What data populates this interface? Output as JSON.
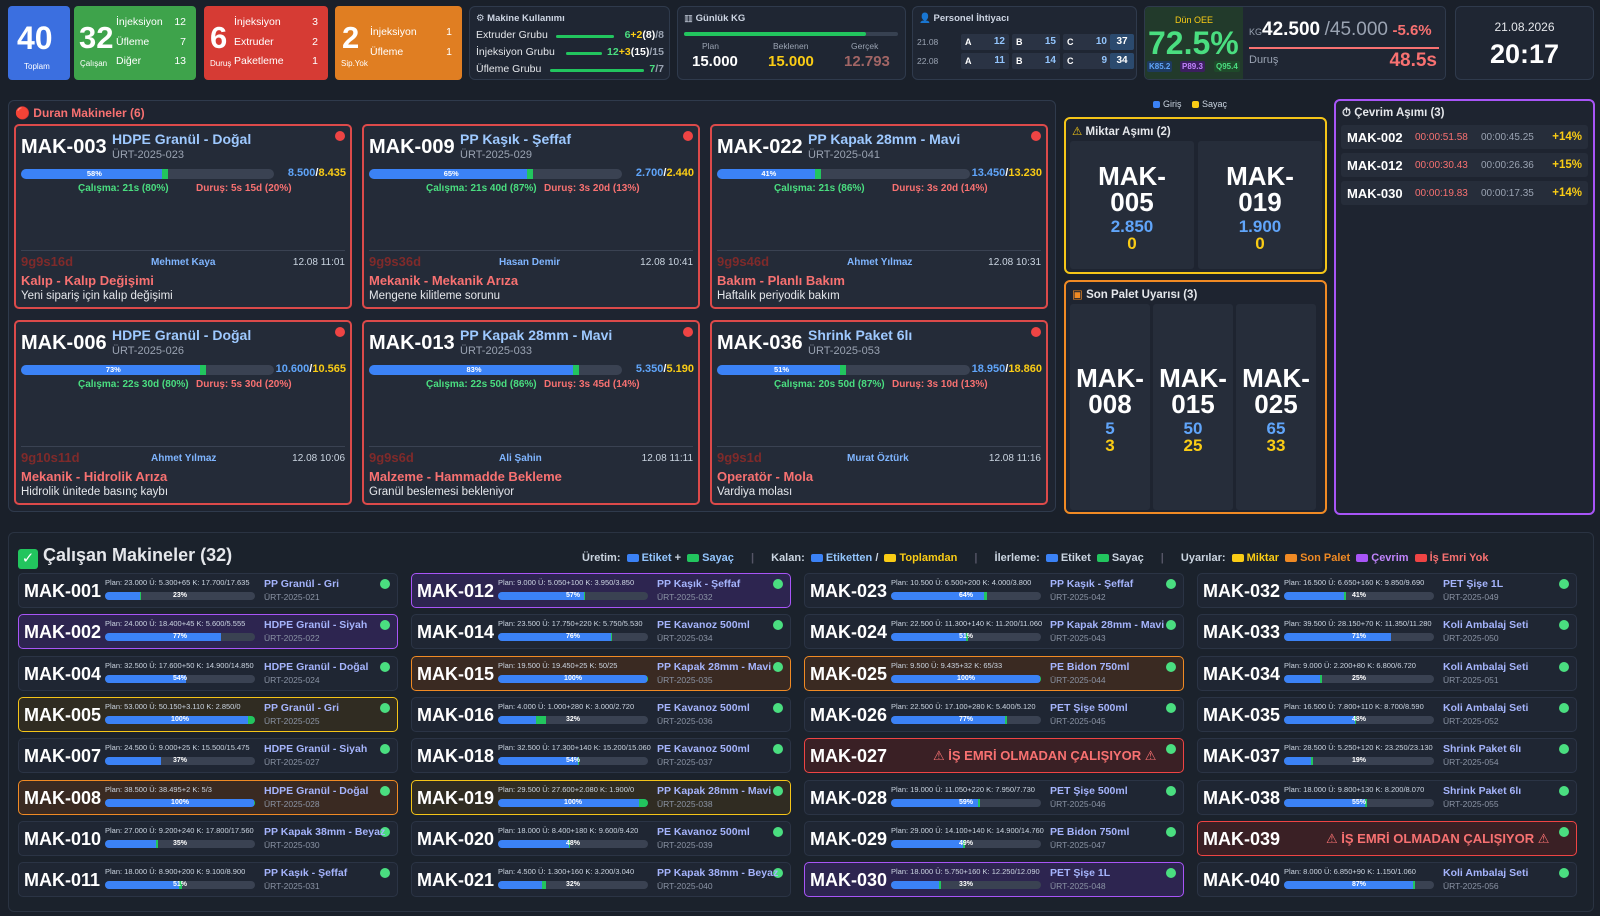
{
  "summary": {
    "total": {
      "value": "40",
      "label": "Toplam"
    },
    "running": {
      "value": "32",
      "label": "Çalışan",
      "rows": [
        {
          "k": "İnjeksiyon",
          "v": "12"
        },
        {
          "k": "Üfleme",
          "v": "7"
        },
        {
          "k": "Diğer",
          "v": "13"
        }
      ]
    },
    "stopped": {
      "value": "6",
      "label": "Duruş",
      "rows": [
        {
          "k": "İnjeksiyon",
          "v": "3"
        },
        {
          "k": "Extruder",
          "v": "2"
        },
        {
          "k": "Paketleme",
          "v": "1"
        }
      ]
    },
    "noorder": {
      "value": "2",
      "label": "Sip.Yok",
      "rows": [
        {
          "k": "İnjeksiyon",
          "v": "1"
        },
        {
          "k": "Üfleme",
          "v": "1"
        }
      ]
    }
  },
  "machine_usage": {
    "title": "Makine Kullanımı",
    "rows": [
      {
        "name": "Extruder Grubu",
        "a": "6",
        "b": "+2",
        "c": "(8)",
        "d": "/8",
        "fill": 1.0
      },
      {
        "name": "İnjeksiyon Grubu",
        "a": "12",
        "b": "+3",
        "c": "(15)",
        "d": "/15",
        "fill": 1.0
      },
      {
        "name": "Üfleme Grubu",
        "a": "7",
        "b": "",
        "c": "",
        "d": "/7",
        "fill": 1.0
      }
    ]
  },
  "daily": {
    "title": "Günlük KG",
    "plan_l": "Plan",
    "plan": "15.000",
    "exp_l": "Beklenen",
    "exp": "15.000",
    "act_l": "Gerçek",
    "act": "12.793",
    "fill": 0.85
  },
  "staff": {
    "title": "Personel İhtiyacı",
    "rows": [
      {
        "d": "21.08",
        "A": "12",
        "B": "15",
        "C": "10",
        "T": "37"
      },
      {
        "d": "22.08",
        "A": "11",
        "B": "14",
        "C": "9",
        "T": "34"
      }
    ]
  },
  "oee": {
    "label": "Dün OEE",
    "value": "72.5%",
    "k": "K85.2",
    "p": "P89.3",
    "q": "Q95.4",
    "kg_unit": "KG",
    "kg": "42.500",
    "kg_target": "/45.000",
    "kg_delta": "-5.6%",
    "dur_l": "Duruş",
    "dur": "48.5s"
  },
  "clock": {
    "date": "21.08.2026",
    "time": "20:17"
  },
  "stopped_panel": {
    "title": "Duran Makineler (6)",
    "machines": [
      {
        "id": "MAK-003",
        "name": "HDPE Granül - Doğal",
        "ur": "ÜRT-2025-023",
        "pct": "58%",
        "p": 0.58,
        "cnt_a": "8.500",
        "cnt_b": "8.435",
        "cal": "Çalışma: 21s (80%)",
        "dur": "Duruş: 5s 15d (20%)",
        "tm": "9g9s16d",
        "op": "Mehmet Kaya",
        "dt": "12.08 11:01",
        "reason": "Kalıp - Kalıp Değişimi",
        "desc": "Yeni sipariş için kalıp değişimi"
      },
      {
        "id": "MAK-009",
        "name": "PP Kaşık - Şeffaf",
        "ur": "ÜRT-2025-029",
        "pct": "65%",
        "p": 0.65,
        "cnt_a": "2.700",
        "cnt_b": "2.440",
        "cal": "Çalışma: 21s 40d (87%)",
        "dur": "Duruş: 3s 20d (13%)",
        "tm": "9g9s36d",
        "op": "Hasan Demir",
        "dt": "12.08 10:41",
        "reason": "Mekanik - Mekanik Arıza",
        "desc": "Mengene kilitleme sorunu"
      },
      {
        "id": "MAK-022",
        "name": "PP Kapak 28mm - Mavi",
        "ur": "ÜRT-2025-041",
        "pct": "41%",
        "p": 0.41,
        "cnt_a": "13.450",
        "cnt_b": "13.230",
        "cal": "Çalışma: 21s (86%)",
        "dur": "Duruş: 3s 20d (14%)",
        "tm": "9g9s46d",
        "op": "Ahmet Yılmaz",
        "dt": "12.08 10:31",
        "reason": "Bakım - Planlı Bakım",
        "desc": "Haftalık periyodik bakım"
      },
      {
        "id": "MAK-006",
        "name": "HDPE Granül - Doğal",
        "ur": "ÜRT-2025-026",
        "pct": "73%",
        "p": 0.73,
        "cnt_a": "10.600",
        "cnt_b": "10.565",
        "cal": "Çalışma: 22s 30d (80%)",
        "dur": "Duruş: 5s 30d (20%)",
        "tm": "9g10s11d",
        "op": "Ahmet Yılmaz",
        "dt": "12.08 10:06",
        "reason": "Mekanik - Hidrolik Arıza",
        "desc": "Hidrolik ünitede basınç kaybı"
      },
      {
        "id": "MAK-013",
        "name": "PP Kapak 28mm - Mavi",
        "ur": "ÜRT-2025-033",
        "pct": "83%",
        "p": 0.83,
        "cnt_a": "5.350",
        "cnt_b": "5.190",
        "cal": "Çalışma: 22s 50d (86%)",
        "dur": "Duruş: 3s 45d (14%)",
        "tm": "9g9s6d",
        "op": "Ali Şahin",
        "dt": "12.08 11:11",
        "reason": "Malzeme - Hammadde Bekleme",
        "desc": "Granül beslemesi bekleniyor"
      },
      {
        "id": "MAK-036",
        "name": "Shrink Paket 6lı",
        "ur": "ÜRT-2025-053",
        "pct": "51%",
        "p": 0.51,
        "cnt_a": "18.950",
        "cnt_b": "18.860",
        "cal": "Çalışma: 20s 50d (87%)",
        "dur": "Duruş: 3s 10d (13%)",
        "tm": "9g9s1d",
        "op": "Murat Öztürk",
        "dt": "12.08 11:16",
        "reason": "Operatör - Mola",
        "desc": "Vardiya molası"
      }
    ]
  },
  "legend_top": {
    "a": "Giriş",
    "b": "Sayaç"
  },
  "qty_over": {
    "title": "Miktar Aşımı (2)",
    "items": [
      {
        "id1": "MAK-",
        "id2": "005",
        "v1": "2.850",
        "v2": "0"
      },
      {
        "id1": "MAK-",
        "id2": "019",
        "v1": "1.900",
        "v2": "0"
      }
    ]
  },
  "last_pallet": {
    "title": "Son Palet Uyarısı (3)",
    "items": [
      {
        "id1": "MAK-",
        "id2": "008",
        "v1": "5",
        "v2": "3"
      },
      {
        "id1": "MAK-",
        "id2": "015",
        "v1": "50",
        "v2": "25"
      },
      {
        "id1": "MAK-",
        "id2": "025",
        "v1": "65",
        "v2": "33"
      }
    ]
  },
  "cycle_over": {
    "title": "Çevrim Aşımı (3)",
    "items": [
      {
        "id": "MAK-002",
        "a": "00:00:51.58",
        "b": "00:00:45.25",
        "c": "+14%"
      },
      {
        "id": "MAK-012",
        "a": "00:00:30.43",
        "b": "00:00:26.36",
        "c": "+15%"
      },
      {
        "id": "MAK-030",
        "a": "00:00:19.83",
        "b": "00:00:17.35",
        "c": "+14%"
      }
    ]
  },
  "running_panel": {
    "title": "Çalışan Makineler (32)",
    "legend": {
      "uretim": "Üretim:",
      "etiket": "Etiket",
      "plus": "+",
      "sayac": "Sayaç",
      "kalan": "Kalan:",
      "etiketten": "Etiketten",
      "slash": "/",
      "toplamdan": "Toplamdan",
      "ilerleme": "İlerleme:",
      "etiket2": "Etiket",
      "sayac2": "Sayaç",
      "uyarilar": "Uyarılar:",
      "miktar": "Miktar",
      "sonpalet": "Son Palet",
      "cevrim": "Çevrim",
      "isemri": "İş Emri Yok"
    },
    "warn_text": "⚠ İŞ EMRİ OLMADAN ÇALIŞIYOR ⚠",
    "machines": [
      {
        "id": "MAK-001",
        "st": "Plan: 23.000  Ü: 5.300+65  K: 17.700/17.635",
        "pct": "23%",
        "p": 0.23,
        "g": 0.01,
        "pr": "PP Granül - Gri",
        "ur": "ÜRT-2025-021",
        "s": ""
      },
      {
        "id": "MAK-012",
        "st": "Plan: 9.000  Ü: 5.050+100  K: 3.950/3.850",
        "pct": "57%",
        "p": 0.57,
        "g": 0.01,
        "pr": "PP Kaşık - Şeffaf",
        "ur": "ÜRT-2025-032",
        "s": "cycle"
      },
      {
        "id": "MAK-023",
        "st": "Plan: 10.500  Ü: 6.500+200  K: 4.000/3.800",
        "pct": "64%",
        "p": 0.62,
        "g": 0.02,
        "pr": "PP Kaşık - Şeffaf",
        "ur": "ÜRT-2025-042",
        "s": ""
      },
      {
        "id": "MAK-032",
        "st": "Plan: 16.500  Ü: 6.650+160  K: 9.850/9.690",
        "pct": "41%",
        "p": 0.4,
        "g": 0.01,
        "pr": "PET Şişe 1L",
        "ur": "ÜRT-2025-049",
        "s": ""
      },
      {
        "id": "MAK-002",
        "st": "Plan: 24.000  Ü: 18.400+45  K: 5.600/5.555",
        "pct": "77%",
        "p": 0.77,
        "g": 0.0,
        "pr": "HDPE Granül - Siyah",
        "ur": "ÜRT-2025-022",
        "s": "cycle"
      },
      {
        "id": "MAK-014",
        "st": "Plan: 23.500  Ü: 17.750+220  K: 5.750/5.530",
        "pct": "76%",
        "p": 0.75,
        "g": 0.01,
        "pr": "PE Kavanoz 500ml",
        "ur": "ÜRT-2025-034",
        "s": ""
      },
      {
        "id": "MAK-024",
        "st": "Plan: 22.500  Ü: 11.300+140  K: 11.200/11.060",
        "pct": "51%",
        "p": 0.5,
        "g": 0.01,
        "pr": "PP Kapak 28mm - Mavi",
        "ur": "ÜRT-2025-043",
        "s": ""
      },
      {
        "id": "MAK-033",
        "st": "Plan: 39.500  Ü: 28.150+70  K: 11.350/11.280",
        "pct": "71%",
        "p": 0.71,
        "g": 0.0,
        "pr": "Koli Ambalaj Seti",
        "ur": "ÜRT-2025-050",
        "s": ""
      },
      {
        "id": "MAK-004",
        "st": "Plan: 32.500  Ü: 17.600+50  K: 14.900/14.850",
        "pct": "54%",
        "p": 0.54,
        "g": 0.0,
        "pr": "HDPE Granül - Doğal",
        "ur": "ÜRT-2025-024",
        "s": ""
      },
      {
        "id": "MAK-015",
        "st": "Plan: 19.500  Ü: 19.450+25  K: 50/25",
        "pct": "100%",
        "p": 0.99,
        "g": 0.01,
        "pr": "PP Kapak 28mm - Mavi",
        "ur": "ÜRT-2025-035",
        "s": "pallet"
      },
      {
        "id": "MAK-025",
        "st": "Plan: 9.500  Ü: 9.435+32  K: 65/33",
        "pct": "100%",
        "p": 0.99,
        "g": 0.01,
        "pr": "PE Bidon 750ml",
        "ur": "ÜRT-2025-044",
        "s": "pallet"
      },
      {
        "id": "MAK-034",
        "st": "Plan: 9.000  Ü: 2.200+80  K: 6.800/6.720",
        "pct": "25%",
        "p": 0.24,
        "g": 0.01,
        "pr": "Koli Ambalaj Seti",
        "ur": "ÜRT-2025-051",
        "s": ""
      },
      {
        "id": "MAK-005",
        "st": "Plan: 53.000  Ü: 50.150+3.110  K: 2.850/0",
        "pct": "100%",
        "p": 0.95,
        "g": 0.05,
        "pr": "PP Granül - Gri",
        "ur": "ÜRT-2025-025",
        "s": "qty"
      },
      {
        "id": "MAK-016",
        "st": "Plan: 4.000  Ü: 1.000+280  K: 3.000/2.720",
        "pct": "32%",
        "p": 0.25,
        "g": 0.07,
        "pr": "PE Kavanoz 500ml",
        "ur": "ÜRT-2025-036",
        "s": ""
      },
      {
        "id": "MAK-026",
        "st": "Plan: 22.500  Ü: 17.100+280  K: 5.400/5.120",
        "pct": "77%",
        "p": 0.76,
        "g": 0.01,
        "pr": "PET Şişe 500ml",
        "ur": "ÜRT-2025-045",
        "s": ""
      },
      {
        "id": "MAK-035",
        "st": "Plan: 16.500  Ü: 7.800+110  K: 8.700/8.590",
        "pct": "48%",
        "p": 0.47,
        "g": 0.01,
        "pr": "Koli Ambalaj Seti",
        "ur": "ÜRT-2025-052",
        "s": ""
      },
      {
        "id": "MAK-007",
        "st": "Plan: 24.500  Ü: 9.000+25  K: 15.500/15.475",
        "pct": "37%",
        "p": 0.37,
        "g": 0.0,
        "pr": "HDPE Granül - Siyah",
        "ur": "ÜRT-2025-027",
        "s": ""
      },
      {
        "id": "MAK-018",
        "st": "Plan: 32.500  Ü: 17.300+140  K: 15.200/15.060",
        "pct": "54%",
        "p": 0.53,
        "g": 0.01,
        "pr": "PE Kavanoz 500ml",
        "ur": "ÜRT-2025-037",
        "s": ""
      },
      {
        "id": "MAK-027",
        "st": "",
        "pct": "",
        "p": 0,
        "g": 0,
        "pr": "",
        "ur": "",
        "s": "noorder"
      },
      {
        "id": "MAK-037",
        "st": "Plan: 28.500  Ü: 5.250+120  K: 23.250/23.130",
        "pct": "19%",
        "p": 0.18,
        "g": 0.01,
        "pr": "Shrink Paket 6lı",
        "ur": "ÜRT-2025-054",
        "s": ""
      },
      {
        "id": "MAK-008",
        "st": "Plan: 38.500  Ü: 38.495+2  K: 5/3",
        "pct": "100%",
        "p": 0.99,
        "g": 0.01,
        "pr": "HDPE Granül - Doğal",
        "ur": "ÜRT-2025-028",
        "s": "pallet"
      },
      {
        "id": "MAK-019",
        "st": "Plan: 29.500  Ü: 27.600+2.080  K: 1.900/0",
        "pct": "100%",
        "p": 0.94,
        "g": 0.06,
        "pr": "PP Kapak 28mm - Mavi",
        "ur": "ÜRT-2025-038",
        "s": "qty"
      },
      {
        "id": "MAK-028",
        "st": "Plan: 19.000  Ü: 11.050+220  K: 7.950/7.730",
        "pct": "59%",
        "p": 0.58,
        "g": 0.01,
        "pr": "PET Şişe 500ml",
        "ur": "ÜRT-2025-046",
        "s": ""
      },
      {
        "id": "MAK-038",
        "st": "Plan: 18.000  Ü: 9.800+130  K: 8.200/8.070",
        "pct": "55%",
        "p": 0.54,
        "g": 0.01,
        "pr": "Shrink Paket 6lı",
        "ur": "ÜRT-2025-055",
        "s": ""
      },
      {
        "id": "MAK-010",
        "st": "Plan: 27.000  Ü: 9.200+240  K: 17.800/17.560",
        "pct": "35%",
        "p": 0.34,
        "g": 0.01,
        "pr": "PP Kapak 38mm - Beyaz",
        "ur": "ÜRT-2025-030",
        "s": ""
      },
      {
        "id": "MAK-020",
        "st": "Plan: 18.000  Ü: 8.400+180  K: 9.600/9.420",
        "pct": "48%",
        "p": 0.47,
        "g": 0.01,
        "pr": "PE Kavanoz 500ml",
        "ur": "ÜRT-2025-039",
        "s": ""
      },
      {
        "id": "MAK-029",
        "st": "Plan: 29.000  Ü: 14.100+140  K: 14.900/14.760",
        "pct": "49%",
        "p": 0.48,
        "g": 0.01,
        "pr": "PE Bidon 750ml",
        "ur": "ÜRT-2025-047",
        "s": ""
      },
      {
        "id": "MAK-039",
        "st": "",
        "pct": "",
        "p": 0,
        "g": 0,
        "pr": "",
        "ur": "",
        "s": "noorder"
      },
      {
        "id": "MAK-011",
        "st": "Plan: 18.000  Ü: 8.900+200  K: 9.100/8.900",
        "pct": "51%",
        "p": 0.49,
        "g": 0.02,
        "pr": "PP Kaşık - Şeffaf",
        "ur": "ÜRT-2025-031",
        "s": ""
      },
      {
        "id": "MAK-021",
        "st": "Plan: 4.500  Ü: 1.300+160  K: 3.200/3.040",
        "pct": "32%",
        "p": 0.29,
        "g": 0.03,
        "pr": "PP Kapak 38mm - Beyaz",
        "ur": "ÜRT-2025-040",
        "s": ""
      },
      {
        "id": "MAK-030",
        "st": "Plan: 18.000  Ü: 5.750+160  K: 12.250/12.090",
        "pct": "33%",
        "p": 0.32,
        "g": 0.01,
        "pr": "PET Şişe 1L",
        "ur": "ÜRT-2025-048",
        "s": "cycle"
      },
      {
        "id": "MAK-040",
        "st": "Plan: 8.000  Ü: 6.850+90  K: 1.150/1.060",
        "pct": "87%",
        "p": 0.86,
        "g": 0.01,
        "pr": "Koli Ambalaj Seti",
        "ur": "ÜRT-2025-056",
        "s": ""
      }
    ]
  },
  "colors": {
    "blue": "#3b6fe0",
    "green": "#3ea34b",
    "red": "#d63b34",
    "orange": "#e07e22",
    "qty": "#f5c518",
    "pallet": "#f08a24",
    "cycle": "#a855f7",
    "noorder": "#ef4444"
  }
}
